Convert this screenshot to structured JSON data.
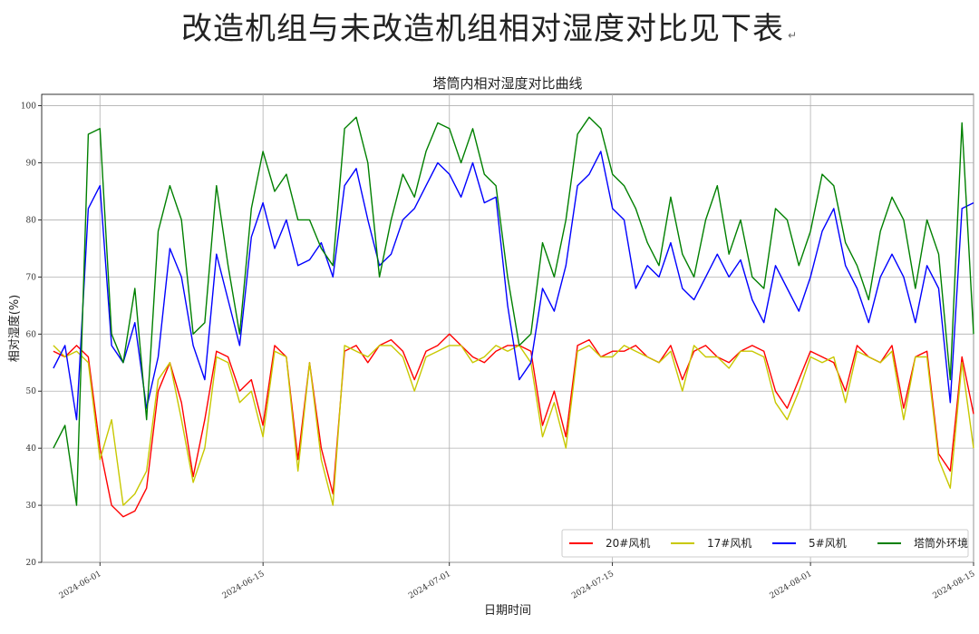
{
  "document": {
    "heading": "改造机组与未改造机组相对湿度对比见下表",
    "heading_mark": "↵"
  },
  "chart_data": {
    "type": "line",
    "title": "塔筒内相对湿度对比曲线",
    "xlabel": "日期时间",
    "ylabel": "相对湿度(%)",
    "x_range": [
      "2024-05-27",
      "2024-08-15"
    ],
    "x_ticks": [
      "2024-06-01",
      "2024-06-15",
      "2024-07-01",
      "2024-07-15",
      "2024-08-01",
      "2024-08-15"
    ],
    "ylim": [
      20,
      102
    ],
    "y_ticks": [
      20,
      30,
      40,
      50,
      60,
      70,
      80,
      90,
      100
    ],
    "grid": true,
    "legend_position": "bottom-right",
    "x": [
      "2024-05-28",
      "2024-05-29",
      "2024-05-30",
      "2024-05-31",
      "2024-06-01",
      "2024-06-02",
      "2024-06-03",
      "2024-06-04",
      "2024-06-05",
      "2024-06-06",
      "2024-06-07",
      "2024-06-08",
      "2024-06-09",
      "2024-06-10",
      "2024-06-11",
      "2024-06-12",
      "2024-06-13",
      "2024-06-14",
      "2024-06-15",
      "2024-06-16",
      "2024-06-17",
      "2024-06-18",
      "2024-06-19",
      "2024-06-20",
      "2024-06-21",
      "2024-06-22",
      "2024-06-23",
      "2024-06-24",
      "2024-06-25",
      "2024-06-26",
      "2024-06-27",
      "2024-06-28",
      "2024-06-29",
      "2024-06-30",
      "2024-07-01",
      "2024-07-02",
      "2024-07-03",
      "2024-07-04",
      "2024-07-05",
      "2024-07-06",
      "2024-07-07",
      "2024-07-08",
      "2024-07-09",
      "2024-07-10",
      "2024-07-11",
      "2024-07-12",
      "2024-07-13",
      "2024-07-14",
      "2024-07-15",
      "2024-07-16",
      "2024-07-17",
      "2024-07-18",
      "2024-07-19",
      "2024-07-20",
      "2024-07-21",
      "2024-07-22",
      "2024-07-23",
      "2024-07-24",
      "2024-07-25",
      "2024-07-26",
      "2024-07-27",
      "2024-07-28",
      "2024-07-29",
      "2024-07-30",
      "2024-07-31",
      "2024-08-01",
      "2024-08-02",
      "2024-08-03",
      "2024-08-04",
      "2024-08-05",
      "2024-08-06",
      "2024-08-07",
      "2024-08-08",
      "2024-08-09",
      "2024-08-10",
      "2024-08-11",
      "2024-08-12",
      "2024-08-13",
      "2024-08-14",
      "2024-08-15"
    ],
    "series": [
      {
        "name": "20#风机",
        "color": "#ff0000",
        "values": [
          57,
          56,
          58,
          56,
          40,
          30,
          28,
          29,
          33,
          50,
          55,
          48,
          35,
          45,
          57,
          56,
          50,
          52,
          44,
          58,
          56,
          38,
          55,
          40,
          32,
          57,
          58,
          55,
          58,
          59,
          57,
          52,
          57,
          58,
          60,
          58,
          56,
          55,
          57,
          58,
          58,
          57,
          44,
          50,
          42,
          58,
          59,
          56,
          57,
          57,
          58,
          56,
          55,
          58,
          52,
          57,
          58,
          56,
          55,
          57,
          58,
          57,
          50,
          47,
          52,
          57,
          56,
          55,
          50,
          58,
          56,
          55,
          58,
          47,
          56,
          57,
          39,
          36,
          56,
          46
        ]
      },
      {
        "name": "17#风机",
        "color": "#c8c800",
        "values": [
          58,
          56,
          57,
          55,
          38,
          45,
          30,
          32,
          36,
          52,
          55,
          45,
          34,
          40,
          56,
          55,
          48,
          50,
          42,
          57,
          56,
          36,
          55,
          38,
          30,
          58,
          57,
          56,
          58,
          58,
          56,
          50,
          56,
          57,
          58,
          58,
          55,
          56,
          58,
          57,
          58,
          55,
          42,
          48,
          40,
          57,
          58,
          56,
          56,
          58,
          57,
          56,
          55,
          57,
          50,
          58,
          56,
          56,
          54,
          57,
          57,
          56,
          48,
          45,
          50,
          56,
          55,
          56,
          48,
          57,
          56,
          55,
          57,
          45,
          56,
          56,
          38,
          33,
          55,
          40
        ]
      },
      {
        "name": "5#风机",
        "color": "#0000ff",
        "values": [
          54,
          58,
          45,
          82,
          86,
          58,
          55,
          62,
          47,
          56,
          75,
          70,
          58,
          52,
          74,
          66,
          58,
          77,
          83,
          75,
          80,
          72,
          73,
          76,
          70,
          86,
          89,
          80,
          72,
          74,
          80,
          82,
          86,
          90,
          88,
          84,
          90,
          83,
          84,
          65,
          52,
          55,
          68,
          64,
          72,
          86,
          88,
          92,
          82,
          80,
          68,
          72,
          70,
          76,
          68,
          66,
          70,
          74,
          70,
          73,
          66,
          62,
          72,
          68,
          64,
          70,
          78,
          82,
          72,
          68,
          62,
          70,
          74,
          70,
          62,
          72,
          68,
          48,
          82,
          83
        ]
      },
      {
        "name": "塔筒外环境",
        "color": "#008000",
        "values": [
          40,
          44,
          30,
          95,
          96,
          60,
          55,
          68,
          45,
          78,
          86,
          80,
          60,
          62,
          86,
          72,
          60,
          82,
          92,
          85,
          88,
          80,
          80,
          75,
          72,
          96,
          98,
          90,
          70,
          80,
          88,
          84,
          92,
          97,
          96,
          90,
          96,
          88,
          86,
          70,
          58,
          60,
          76,
          70,
          80,
          95,
          98,
          96,
          88,
          86,
          82,
          76,
          72,
          84,
          74,
          70,
          80,
          86,
          74,
          80,
          70,
          68,
          82,
          80,
          72,
          78,
          88,
          86,
          76,
          72,
          66,
          78,
          84,
          80,
          68,
          80,
          74,
          52,
          97,
          60
        ]
      }
    ]
  }
}
